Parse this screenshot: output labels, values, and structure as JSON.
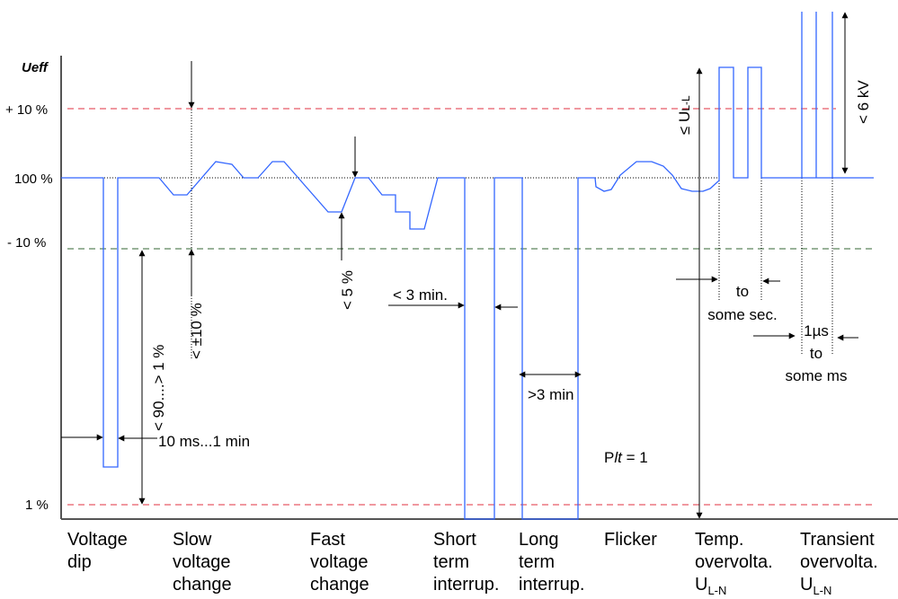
{
  "y_axis": {
    "title": "Ueff",
    "ticks": [
      "+ 10 %",
      "100 %",
      "- 10 %",
      "1 %"
    ]
  },
  "annotations": {
    "dip_range": "< 90....> 1 %",
    "dip_duration": "10 ms...1 min",
    "slow_change": "< ±10 %",
    "fast_change": "< 5 %",
    "short_interrupt": "< 3 min.",
    "long_interrupt": ">3 min",
    "flicker": "P",
    "flicker_italic": "lt",
    "flicker_value": " = 1",
    "temp_limit_prefix": "≤ U",
    "temp_limit_sub": "L-L",
    "temp_duration_1": "to",
    "temp_duration_2": "some sec.",
    "transient_duration_1": "1µs",
    "transient_duration_2": "to",
    "transient_duration_3": "some ms",
    "transient_limit": "< 6 kV"
  },
  "categories": [
    {
      "lines": [
        "Voltage",
        "dip"
      ]
    },
    {
      "lines": [
        "Slow",
        "voltage",
        "change"
      ]
    },
    {
      "lines": [
        "Fast",
        "voltage",
        "change"
      ]
    },
    {
      "lines": [
        "Short",
        "term",
        "interrup."
      ]
    },
    {
      "lines": [
        "Long",
        "term",
        "interrup."
      ]
    },
    {
      "lines": [
        "Flicker"
      ]
    },
    {
      "lines": [
        "Temp.",
        "overvolta.",
        "U"
      ],
      "sub": "L-N"
    },
    {
      "lines": [
        "Transient",
        "overvolta.",
        "U"
      ],
      "sub": "L-N"
    }
  ],
  "colors": {
    "waveform": "#3366ff",
    "limit_lines": "#e03040",
    "lower_limit": "#336633",
    "axis": "#555555"
  }
}
